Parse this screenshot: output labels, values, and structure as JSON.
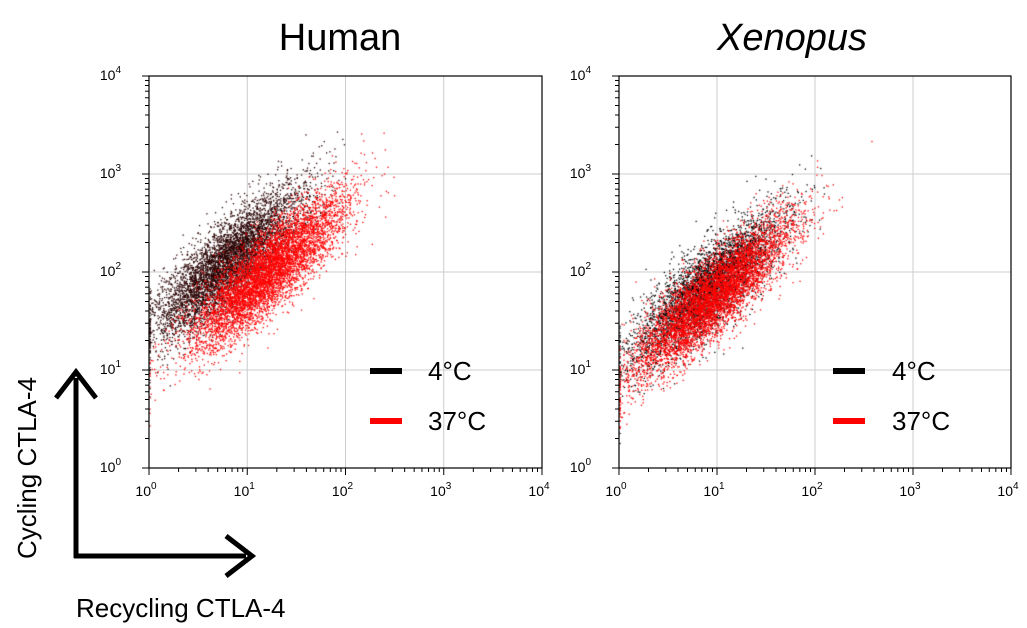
{
  "figure": {
    "axis_labels": {
      "y": "Cycling CTLA-4",
      "x": "Recycling CTLA-4"
    }
  },
  "chart_data": [
    {
      "type": "scatter",
      "title": "Human",
      "title_italic": false,
      "x_scale": "log",
      "y_scale": "log",
      "xlim": [
        1,
        10000
      ],
      "ylim": [
        1,
        10000
      ],
      "grid": true,
      "ticks": [
        {
          "base": "10",
          "exp": "0"
        },
        {
          "base": "10",
          "exp": "1"
        },
        {
          "base": "10",
          "exp": "2"
        },
        {
          "base": "10",
          "exp": "3"
        },
        {
          "base": "10",
          "exp": "4"
        }
      ],
      "legend_placement": "bottom-right",
      "series": [
        {
          "name": "4°C",
          "color": "#000000",
          "fill": "#2a0000",
          "count": 5200,
          "centroid_log": [
            0.8,
            2.1
          ],
          "major_sd": 0.5,
          "minor_sd": 0.16
        },
        {
          "name": "37°C",
          "color": "#ff0000",
          "fill": "#ff0000",
          "count": 6200,
          "centroid_log": [
            1.2,
            2.0
          ],
          "major_sd": 0.52,
          "minor_sd": 0.15
        }
      ]
    },
    {
      "type": "scatter",
      "title": "Xenopus",
      "title_italic": true,
      "x_scale": "log",
      "y_scale": "log",
      "xlim": [
        1,
        10000
      ],
      "ylim": [
        1,
        10000
      ],
      "grid": true,
      "ticks": [
        {
          "base": "10",
          "exp": "0"
        },
        {
          "base": "10",
          "exp": "1"
        },
        {
          "base": "10",
          "exp": "2"
        },
        {
          "base": "10",
          "exp": "3"
        },
        {
          "base": "10",
          "exp": "4"
        }
      ],
      "legend_placement": "bottom-right",
      "series": [
        {
          "name": "4°C",
          "color": "#000000",
          "fill": "#000000",
          "count": 4200,
          "centroid_log": [
            0.9,
            1.85
          ],
          "major_sd": 0.5,
          "minor_sd": 0.16
        },
        {
          "name": "37°C",
          "color": "#ff0000",
          "fill": "#ff0000",
          "count": 5800,
          "centroid_log": [
            0.95,
            1.75
          ],
          "major_sd": 0.55,
          "minor_sd": 0.15
        }
      ]
    }
  ]
}
